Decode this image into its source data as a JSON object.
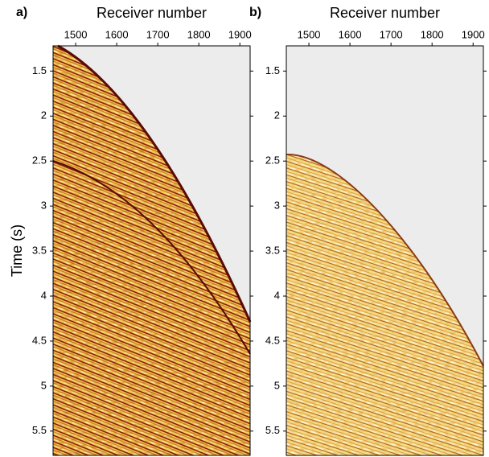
{
  "chart_data": [
    {
      "type": "image",
      "panel_label": "a)",
      "xlabel": "Receiver number",
      "ylabel": "Time (s)",
      "xlim": [
        1445,
        1925
      ],
      "xticks": [
        1500,
        1600,
        1700,
        1800,
        1900
      ],
      "ylim": [
        1.22,
        5.77
      ],
      "yticks": [
        1.5,
        2,
        2.5,
        3,
        3.5,
        4,
        4.5,
        5,
        5.5
      ]
    },
    {
      "type": "image",
      "panel_label": "b)",
      "xlabel": "Receiver number",
      "xlim": [
        1445,
        1925
      ],
      "xticks": [
        1500,
        1600,
        1700,
        1800,
        1900
      ],
      "ylim": [
        1.22,
        5.77
      ],
      "yticks": [
        1.5,
        2,
        2.5,
        3,
        3.5,
        4,
        4.5,
        5,
        5.5
      ]
    }
  ]
}
